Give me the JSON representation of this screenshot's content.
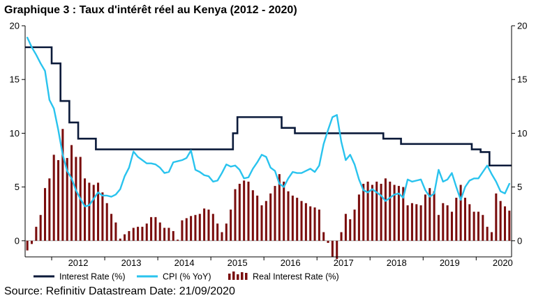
{
  "title": "Graphique 3 : Taux d'intérêt réel au Kenya (2012 - 2020)",
  "source": "Source: Refinitiv Datastream Date: 21/09/2020",
  "chart_data": {
    "type": "line",
    "ylim": [
      -1.5,
      20
    ],
    "yticks": [
      "20",
      "15",
      "10",
      "5",
      "0"
    ],
    "ytick_values": [
      20,
      15,
      10,
      5,
      0
    ],
    "xtick_labels": [
      "2012",
      "2013",
      "2014",
      "2015",
      "2016",
      "2017",
      "2018",
      "2019",
      "2020"
    ],
    "x_start": "2011-07",
    "x_end": "2020-08",
    "colors": {
      "interest": "#0b1a3a",
      "cpi": "#29c3ee",
      "real": "#7a0d0d"
    },
    "series": [
      {
        "name": "Interest Rate (%)",
        "kind": "step",
        "points": [
          [
            "2011-07",
            18
          ],
          [
            "2011-08",
            18
          ],
          [
            "2011-09",
            18
          ],
          [
            "2011-10",
            18
          ],
          [
            "2011-11",
            18
          ],
          [
            "2011-12",
            18
          ],
          [
            "2012-01",
            16.5
          ],
          [
            "2012-02",
            16.5
          ],
          [
            "2012-03",
            13
          ],
          [
            "2012-04",
            13
          ],
          [
            "2012-05",
            11
          ],
          [
            "2012-06",
            11
          ],
          [
            "2012-07",
            9.5
          ],
          [
            "2012-08",
            9.5
          ],
          [
            "2012-09",
            9.5
          ],
          [
            "2012-10",
            9.5
          ],
          [
            "2012-11",
            8.5
          ],
          [
            "2012-12",
            8.5
          ],
          [
            "2013-12",
            8.5
          ],
          [
            "2014-12",
            8.5
          ],
          [
            "2015-05",
            8.5
          ],
          [
            "2015-06",
            10
          ],
          [
            "2015-07",
            11.5
          ],
          [
            "2015-12",
            11.5
          ],
          [
            "2016-01",
            11.5
          ],
          [
            "2016-04",
            11.5
          ],
          [
            "2016-05",
            10.5
          ],
          [
            "2016-06",
            10.5
          ],
          [
            "2016-07",
            10.5
          ],
          [
            "2016-08",
            10
          ],
          [
            "2017-12",
            10
          ],
          [
            "2018-03",
            10
          ],
          [
            "2018-04",
            9.5
          ],
          [
            "2018-07",
            9.5
          ],
          [
            "2018-08",
            9
          ],
          [
            "2019-11",
            9
          ],
          [
            "2019-12",
            8.5
          ],
          [
            "2020-01",
            8.5
          ],
          [
            "2020-02",
            8.25
          ],
          [
            "2020-03",
            8.25
          ],
          [
            "2020-04",
            7
          ],
          [
            "2020-08",
            7
          ]
        ]
      },
      {
        "name": "CPI (% YoY)",
        "kind": "line",
        "points": [
          [
            "2011-07",
            18.9
          ],
          [
            "2011-08",
            18.0
          ],
          [
            "2011-09",
            17.3
          ],
          [
            "2011-10",
            16.5
          ],
          [
            "2011-11",
            15.8
          ],
          [
            "2011-12",
            13.1
          ],
          [
            "2012-01",
            12.3
          ],
          [
            "2012-02",
            10.3
          ],
          [
            "2012-03",
            8.0
          ],
          [
            "2012-04",
            6.5
          ],
          [
            "2012-05",
            5.8
          ],
          [
            "2012-06",
            4.7
          ],
          [
            "2012-07",
            3.9
          ],
          [
            "2012-08",
            3.2
          ],
          [
            "2012-09",
            3.3
          ],
          [
            "2012-10",
            3.9
          ],
          [
            "2012-11",
            4.5
          ],
          [
            "2012-12",
            4.2
          ],
          [
            "2013-01",
            4.2
          ],
          [
            "2013-02",
            4.1
          ],
          [
            "2013-03",
            4.3
          ],
          [
            "2013-04",
            4.8
          ],
          [
            "2013-05",
            6.0
          ],
          [
            "2013-06",
            6.8
          ],
          [
            "2013-07",
            8.3
          ],
          [
            "2013-08",
            7.8
          ],
          [
            "2013-09",
            7.5
          ],
          [
            "2013-10",
            7.2
          ],
          [
            "2013-11",
            7.2
          ],
          [
            "2013-12",
            7.1
          ],
          [
            "2014-01",
            6.8
          ],
          [
            "2014-02",
            6.3
          ],
          [
            "2014-03",
            6.4
          ],
          [
            "2014-04",
            7.3
          ],
          [
            "2014-05",
            7.4
          ],
          [
            "2014-06",
            7.5
          ],
          [
            "2014-07",
            7.7
          ],
          [
            "2014-08",
            8.4
          ],
          [
            "2014-09",
            6.6
          ],
          [
            "2014-10",
            6.4
          ],
          [
            "2014-11",
            6.1
          ],
          [
            "2014-12",
            6.0
          ],
          [
            "2015-01",
            5.5
          ],
          [
            "2015-02",
            5.6
          ],
          [
            "2015-03",
            6.3
          ],
          [
            "2015-04",
            7.1
          ],
          [
            "2015-05",
            6.9
          ],
          [
            "2015-06",
            7.0
          ],
          [
            "2015-07",
            6.6
          ],
          [
            "2015-08",
            5.8
          ],
          [
            "2015-09",
            5.9
          ],
          [
            "2015-10",
            6.7
          ],
          [
            "2015-11",
            7.3
          ],
          [
            "2015-12",
            8.0
          ],
          [
            "2016-01",
            7.8
          ],
          [
            "2016-02",
            6.8
          ],
          [
            "2016-03",
            6.5
          ],
          [
            "2016-04",
            5.3
          ],
          [
            "2016-05",
            5.0
          ],
          [
            "2016-06",
            5.8
          ],
          [
            "2016-07",
            6.4
          ],
          [
            "2016-08",
            6.3
          ],
          [
            "2016-09",
            6.3
          ],
          [
            "2016-10",
            6.5
          ],
          [
            "2016-11",
            6.7
          ],
          [
            "2016-12",
            6.4
          ],
          [
            "2017-01",
            7.0
          ],
          [
            "2017-02",
            9.0
          ],
          [
            "2017-03",
            10.3
          ],
          [
            "2017-04",
            11.5
          ],
          [
            "2017-05",
            11.7
          ],
          [
            "2017-06",
            9.2
          ],
          [
            "2017-07",
            7.5
          ],
          [
            "2017-08",
            8.0
          ],
          [
            "2017-09",
            7.1
          ],
          [
            "2017-10",
            5.7
          ],
          [
            "2017-11",
            4.7
          ],
          [
            "2017-12",
            4.5
          ],
          [
            "2018-01",
            4.8
          ],
          [
            "2018-02",
            4.5
          ],
          [
            "2018-03",
            4.2
          ],
          [
            "2018-04",
            3.7
          ],
          [
            "2018-05",
            4.0
          ],
          [
            "2018-06",
            4.3
          ],
          [
            "2018-07",
            4.4
          ],
          [
            "2018-08",
            4.0
          ],
          [
            "2018-09",
            5.7
          ],
          [
            "2018-10",
            5.5
          ],
          [
            "2018-11",
            5.6
          ],
          [
            "2018-12",
            5.7
          ],
          [
            "2019-01",
            4.7
          ],
          [
            "2019-02",
            4.1
          ],
          [
            "2019-03",
            4.4
          ],
          [
            "2019-04",
            6.6
          ],
          [
            "2019-05",
            5.5
          ],
          [
            "2019-06",
            5.7
          ],
          [
            "2019-07",
            6.3
          ],
          [
            "2019-08",
            5.0
          ],
          [
            "2019-09",
            3.8
          ],
          [
            "2019-10",
            5.0
          ],
          [
            "2019-11",
            5.6
          ],
          [
            "2019-12",
            5.8
          ],
          [
            "2020-01",
            5.8
          ],
          [
            "2020-02",
            6.4
          ],
          [
            "2020-03",
            7.0
          ],
          [
            "2020-04",
            6.2
          ],
          [
            "2020-05",
            5.5
          ],
          [
            "2020-06",
            4.6
          ],
          [
            "2020-07",
            4.4
          ],
          [
            "2020-08",
            5.3
          ]
        ]
      },
      {
        "name": "Real Interest Rate (%)",
        "kind": "bar",
        "points": [
          [
            "2011-07",
            -0.9
          ],
          [
            "2011-08",
            -0.3
          ],
          [
            "2011-09",
            1.3
          ],
          [
            "2011-10",
            2.4
          ],
          [
            "2011-11",
            4.9
          ],
          [
            "2011-12",
            5.8
          ],
          [
            "2012-01",
            8.0
          ],
          [
            "2012-02",
            7.5
          ],
          [
            "2012-03",
            10.4
          ],
          [
            "2012-04",
            7.7
          ],
          [
            "2012-05",
            8.9
          ],
          [
            "2012-06",
            7.8
          ],
          [
            "2012-07",
            7.8
          ],
          [
            "2012-08",
            5.8
          ],
          [
            "2012-09",
            5.4
          ],
          [
            "2012-10",
            5.2
          ],
          [
            "2012-11",
            5.4
          ],
          [
            "2012-12",
            4.5
          ],
          [
            "2013-01",
            3.5
          ],
          [
            "2013-02",
            2.5
          ],
          [
            "2013-03",
            1.7
          ],
          [
            "2013-04",
            0.2
          ],
          [
            "2013-05",
            0.6
          ],
          [
            "2013-06",
            0.9
          ],
          [
            "2013-07",
            1.2
          ],
          [
            "2013-08",
            1.3
          ],
          [
            "2013-09",
            1.3
          ],
          [
            "2013-10",
            1.6
          ],
          [
            "2013-11",
            2.2
          ],
          [
            "2013-12",
            2.2
          ],
          [
            "2014-01",
            1.7
          ],
          [
            "2014-02",
            1.2
          ],
          [
            "2014-03",
            1.2
          ],
          [
            "2014-04",
            0.9
          ],
          [
            "2014-05",
            0.1
          ],
          [
            "2014-06",
            1.9
          ],
          [
            "2014-07",
            2.1
          ],
          [
            "2014-08",
            2.3
          ],
          [
            "2014-09",
            2.4
          ],
          [
            "2014-10",
            2.5
          ],
          [
            "2014-11",
            3.0
          ],
          [
            "2014-12",
            2.9
          ],
          [
            "2015-01",
            2.5
          ],
          [
            "2015-02",
            1.6
          ],
          [
            "2015-03",
            0.8
          ],
          [
            "2015-04",
            1.6
          ],
          [
            "2015-05",
            2.9
          ],
          [
            "2015-06",
            4.8
          ],
          [
            "2015-07",
            5.3
          ],
          [
            "2015-08",
            5.6
          ],
          [
            "2015-09",
            5.5
          ],
          [
            "2015-10",
            4.7
          ],
          [
            "2015-11",
            4.2
          ],
          [
            "2015-12",
            3.3
          ],
          [
            "2016-01",
            3.7
          ],
          [
            "2016-02",
            4.4
          ],
          [
            "2016-03",
            5.1
          ],
          [
            "2016-04",
            6.2
          ],
          [
            "2016-05",
            5.5
          ],
          [
            "2016-06",
            4.6
          ],
          [
            "2016-07",
            4.2
          ],
          [
            "2016-08",
            4.0
          ],
          [
            "2016-09",
            3.7
          ],
          [
            "2016-10",
            3.5
          ],
          [
            "2016-11",
            3.2
          ],
          [
            "2016-12",
            3.1
          ],
          [
            "2017-01",
            2.9
          ],
          [
            "2017-02",
            0.8
          ],
          [
            "2017-03",
            -0.2
          ],
          [
            "2017-04",
            -1.5
          ],
          [
            "2017-05",
            -1.7
          ],
          [
            "2017-06",
            0.8
          ],
          [
            "2017-07",
            2.5
          ],
          [
            "2017-08",
            2.0
          ],
          [
            "2017-09",
            2.9
          ],
          [
            "2017-10",
            4.3
          ],
          [
            "2017-11",
            5.3
          ],
          [
            "2017-12",
            5.5
          ],
          [
            "2018-01",
            5.2
          ],
          [
            "2018-02",
            5.5
          ],
          [
            "2018-03",
            5.3
          ],
          [
            "2018-04",
            5.8
          ],
          [
            "2018-05",
            5.5
          ],
          [
            "2018-06",
            5.2
          ],
          [
            "2018-07",
            5.1
          ],
          [
            "2018-08",
            5.0
          ],
          [
            "2018-09",
            3.3
          ],
          [
            "2018-10",
            3.5
          ],
          [
            "2018-11",
            3.4
          ],
          [
            "2018-12",
            3.3
          ],
          [
            "2019-01",
            4.3
          ],
          [
            "2019-02",
            4.9
          ],
          [
            "2019-03",
            4.6
          ],
          [
            "2019-04",
            2.4
          ],
          [
            "2019-05",
            3.5
          ],
          [
            "2019-06",
            3.3
          ],
          [
            "2019-07",
            2.7
          ],
          [
            "2019-08",
            4.0
          ],
          [
            "2019-09",
            5.2
          ],
          [
            "2019-10",
            4.0
          ],
          [
            "2019-11",
            3.4
          ],
          [
            "2019-12",
            2.7
          ],
          [
            "2020-01",
            2.7
          ],
          [
            "2020-02",
            2.4
          ],
          [
            "2020-03",
            1.3
          ],
          [
            "2020-04",
            0.8
          ],
          [
            "2020-05",
            4.4
          ],
          [
            "2020-06",
            3.7
          ],
          [
            "2020-07",
            3.2
          ],
          [
            "2020-08",
            2.8
          ]
        ]
      }
    ]
  }
}
